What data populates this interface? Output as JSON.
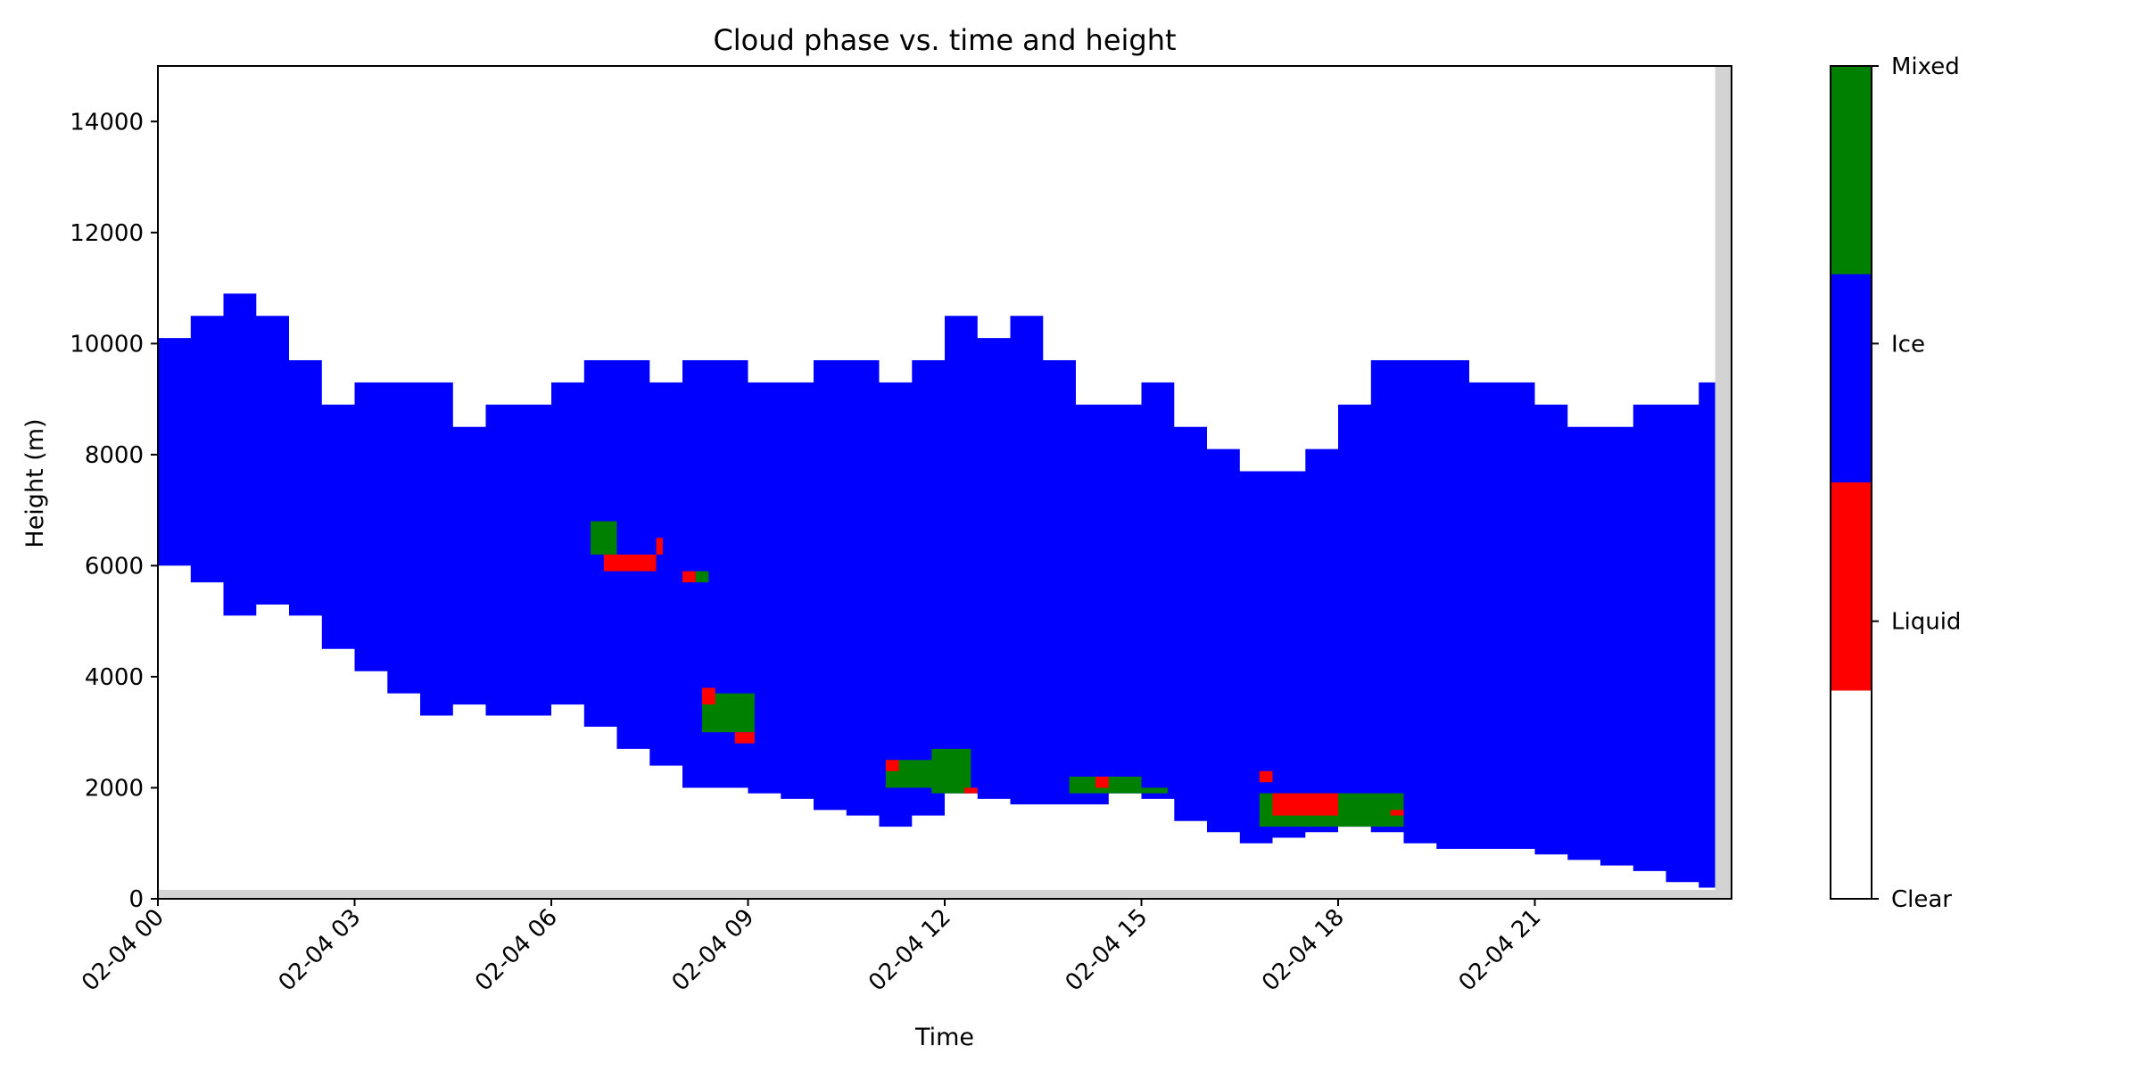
{
  "chart_data": {
    "type": "heatmap",
    "title": "Cloud phase vs. time and height",
    "xlabel": "Time",
    "ylabel": "Height (m)",
    "x_ticks": [
      "02-04 00",
      "02-04 03",
      "02-04 06",
      "02-04 09",
      "02-04 12",
      "02-04 15",
      "02-04 18",
      "02-04 21"
    ],
    "x_range": [
      "02-04 00:00",
      "02-05 00:00"
    ],
    "ylim": [
      0,
      15000
    ],
    "y_ticks": [
      0,
      2000,
      4000,
      6000,
      8000,
      10000,
      12000,
      14000
    ],
    "grid": false,
    "colorbar": {
      "position": "right",
      "categories": [
        {
          "label": "Clear",
          "color": "#ffffff"
        },
        {
          "label": "Liquid",
          "color": "#ff0000"
        },
        {
          "label": "Ice",
          "color": "#0000ff"
        },
        {
          "label": "Mixed",
          "color": "#008000"
        }
      ],
      "tick_labels": [
        "Clear",
        "Liquid",
        "Ice",
        "Mixed"
      ]
    },
    "cloud_extent": {
      "description": "Ice cloud envelope (approximate top and base heights, m)",
      "time_hours": [
        0,
        0.5,
        1,
        1.5,
        2,
        2.5,
        3,
        3.5,
        4,
        4.5,
        5,
        5.5,
        6,
        6.5,
        7,
        7.5,
        8,
        8.5,
        9,
        9.5,
        10,
        10.5,
        11,
        11.5,
        12,
        12.5,
        13,
        13.5,
        14,
        14.5,
        15,
        15.5,
        16,
        16.5,
        17,
        17.5,
        18,
        18.5,
        19,
        19.5,
        20,
        20.5,
        21,
        21.5,
        22,
        22.5,
        23,
        23.5
      ],
      "top_m": [
        10100,
        10500,
        10900,
        10500,
        9700,
        8900,
        9300,
        9300,
        9300,
        8500,
        8900,
        8900,
        9300,
        9700,
        9700,
        9300,
        9700,
        9700,
        9300,
        9300,
        9700,
        9700,
        9300,
        9700,
        10500,
        10100,
        10500,
        9700,
        8900,
        8900,
        9300,
        8500,
        8100,
        7700,
        7700,
        8100,
        8900,
        9700,
        9700,
        9700,
        9300,
        9300,
        8900,
        8500,
        8500,
        8900,
        8900,
        9300
      ],
      "base_m": [
        6000,
        5700,
        5100,
        5300,
        5100,
        4500,
        4100,
        3700,
        3300,
        3500,
        3300,
        3300,
        3500,
        3100,
        2700,
        2400,
        2000,
        2000,
        1900,
        1800,
        1600,
        1500,
        1300,
        1500,
        1900,
        1800,
        1700,
        1700,
        1700,
        1900,
        1800,
        1400,
        1200,
        1000,
        1100,
        1200,
        1300,
        1200,
        1000,
        900,
        900,
        900,
        800,
        700,
        600,
        500,
        300,
        200
      ]
    },
    "phase_patches": [
      {
        "phase": "Mixed",
        "time_hours": [
          6.6,
          7.0
        ],
        "height_m": [
          6200,
          6800
        ]
      },
      {
        "phase": "Liquid",
        "time_hours": [
          6.8,
          7.6
        ],
        "height_m": [
          5900,
          6200
        ]
      },
      {
        "phase": "Liquid",
        "time_hours": [
          7.6,
          7.7
        ],
        "height_m": [
          6200,
          6500
        ]
      },
      {
        "phase": "Mixed",
        "time_hours": [
          8.2,
          8.4
        ],
        "height_m": [
          5700,
          5900
        ]
      },
      {
        "phase": "Liquid",
        "time_hours": [
          8.0,
          8.2
        ],
        "height_m": [
          5700,
          5900
        ]
      },
      {
        "phase": "Mixed",
        "time_hours": [
          8.3,
          9.1
        ],
        "height_m": [
          3000,
          3700
        ]
      },
      {
        "phase": "Liquid",
        "time_hours": [
          8.3,
          8.5
        ],
        "height_m": [
          3500,
          3800
        ]
      },
      {
        "phase": "Liquid",
        "time_hours": [
          8.8,
          9.1
        ],
        "height_m": [
          2800,
          3000
        ]
      },
      {
        "phase": "Mixed",
        "time_hours": [
          11.1,
          11.9
        ],
        "height_m": [
          2000,
          2500
        ]
      },
      {
        "phase": "Mixed",
        "time_hours": [
          11.8,
          12.4
        ],
        "height_m": [
          1900,
          2700
        ]
      },
      {
        "phase": "Liquid",
        "time_hours": [
          11.1,
          11.3
        ],
        "height_m": [
          2300,
          2500
        ]
      },
      {
        "phase": "Liquid",
        "time_hours": [
          12.3,
          12.5
        ],
        "height_m": [
          1900,
          2000
        ]
      },
      {
        "phase": "Mixed",
        "time_hours": [
          13.9,
          15.0
        ],
        "height_m": [
          1900,
          2200
        ]
      },
      {
        "phase": "Liquid",
        "time_hours": [
          14.3,
          14.5
        ],
        "height_m": [
          2000,
          2200
        ]
      },
      {
        "phase": "Mixed",
        "time_hours": [
          15.0,
          15.4
        ],
        "height_m": [
          1900,
          2000
        ]
      },
      {
        "phase": "Mixed",
        "time_hours": [
          16.8,
          19.0
        ],
        "height_m": [
          1300,
          1900
        ]
      },
      {
        "phase": "Liquid",
        "time_hours": [
          17.0,
          18.0
        ],
        "height_m": [
          1500,
          1900
        ]
      },
      {
        "phase": "Liquid",
        "time_hours": [
          16.8,
          17.0
        ],
        "height_m": [
          2100,
          2300
        ]
      },
      {
        "phase": "Liquid",
        "time_hours": [
          18.8,
          19.0
        ],
        "height_m": [
          1500,
          1600
        ]
      }
    ],
    "no_data_regions": [
      "right edge after 23.7 h",
      "bottom strip near 0 m"
    ]
  }
}
